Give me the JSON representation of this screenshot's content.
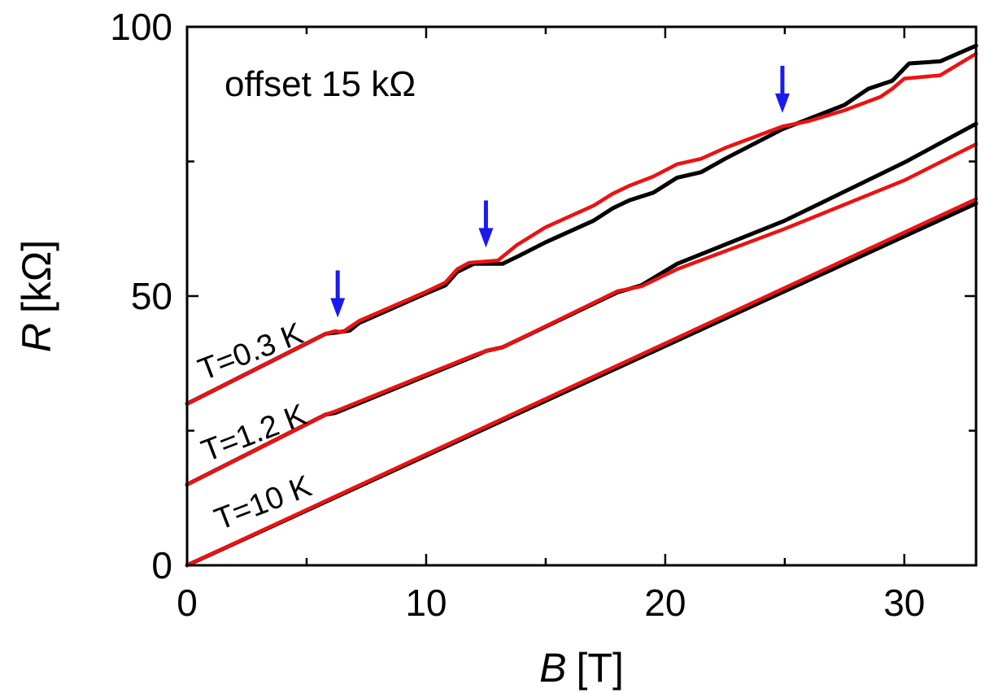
{
  "chart_data": {
    "type": "line",
    "xlabel_var": "B",
    "xlabel_unit": "[T]",
    "ylabel_var": "R",
    "ylabel_unit": "[kΩ]",
    "xlim": [
      0,
      33
    ],
    "ylim": [
      0,
      100
    ],
    "x_ticks": [
      0,
      10,
      20,
      30
    ],
    "y_ticks": [
      0,
      50,
      100
    ],
    "grid": false,
    "annotation": "offset 15 kΩ",
    "curve_labels": [
      "T=0.3 K",
      "T=1.2 K",
      "T=10 K"
    ],
    "colors": {
      "black": "#000000",
      "red": "#ee1111",
      "arrow": "#1a1aee"
    },
    "arrows": [
      {
        "x": 6.3,
        "y": 46
      },
      {
        "x": 12.5,
        "y": 59
      },
      {
        "x": 24.9,
        "y": 84
      }
    ],
    "series": [
      {
        "color": "black",
        "points": [
          [
            0,
            30
          ],
          [
            5.8,
            43
          ],
          [
            6.2,
            43.2
          ],
          [
            6.8,
            43.6
          ],
          [
            7.2,
            45
          ],
          [
            10,
            50.5
          ],
          [
            10.8,
            52
          ],
          [
            11.3,
            54.5
          ],
          [
            12,
            56
          ],
          [
            13.2,
            56
          ],
          [
            13.8,
            57.3
          ],
          [
            15,
            60
          ],
          [
            17,
            64
          ],
          [
            17.8,
            66.3
          ],
          [
            18.5,
            67.8
          ],
          [
            19.5,
            69.2
          ],
          [
            20.5,
            72
          ],
          [
            21.5,
            73
          ],
          [
            22.5,
            75.5
          ],
          [
            24.9,
            81
          ],
          [
            27.5,
            85.5
          ],
          [
            28.5,
            88.5
          ],
          [
            29.5,
            90
          ],
          [
            30.2,
            93.2
          ],
          [
            31.5,
            93.6
          ],
          [
            33,
            96.5
          ]
        ]
      },
      {
        "color": "red",
        "points": [
          [
            0,
            30
          ],
          [
            5.8,
            43
          ],
          [
            6.2,
            43.5
          ],
          [
            6.5,
            43.3
          ],
          [
            7.2,
            45.4
          ],
          [
            10,
            50.8
          ],
          [
            10.8,
            52.5
          ],
          [
            11.3,
            55
          ],
          [
            11.8,
            56.2
          ],
          [
            13,
            56.6
          ],
          [
            13.8,
            59.5
          ],
          [
            15,
            62.8
          ],
          [
            17,
            66.8
          ],
          [
            17.8,
            69
          ],
          [
            18.5,
            70.5
          ],
          [
            19.5,
            72.2
          ],
          [
            20.5,
            74.5
          ],
          [
            21.5,
            75.5
          ],
          [
            22.5,
            77.5
          ],
          [
            24.9,
            81.5
          ],
          [
            26,
            82.5
          ],
          [
            27.5,
            84.5
          ],
          [
            29,
            87
          ],
          [
            29.5,
            88.5
          ],
          [
            30,
            90.4
          ],
          [
            31.5,
            91
          ],
          [
            33,
            95
          ]
        ]
      },
      {
        "color": "black",
        "points": [
          [
            0,
            15
          ],
          [
            5.8,
            28
          ],
          [
            6.2,
            28.3
          ],
          [
            12,
            38.8
          ],
          [
            12.5,
            39.8
          ],
          [
            13.2,
            40.5
          ],
          [
            18,
            50.7
          ],
          [
            19,
            52
          ],
          [
            20.5,
            56
          ],
          [
            25,
            64
          ],
          [
            30,
            74.8
          ],
          [
            33,
            82
          ]
        ]
      },
      {
        "color": "red",
        "points": [
          [
            0,
            15
          ],
          [
            5.8,
            28
          ],
          [
            6.2,
            28.6
          ],
          [
            12,
            39
          ],
          [
            12.5,
            39.8
          ],
          [
            13.2,
            40.5
          ],
          [
            18,
            50.9
          ],
          [
            19,
            51.8
          ],
          [
            20.5,
            55
          ],
          [
            25,
            62.5
          ],
          [
            30,
            71.5
          ],
          [
            33,
            78.2
          ]
        ]
      },
      {
        "color": "black",
        "points": [
          [
            0,
            0
          ],
          [
            33,
            67.2
          ]
        ]
      },
      {
        "color": "red",
        "points": [
          [
            0,
            0
          ],
          [
            33,
            68
          ]
        ]
      }
    ]
  }
}
